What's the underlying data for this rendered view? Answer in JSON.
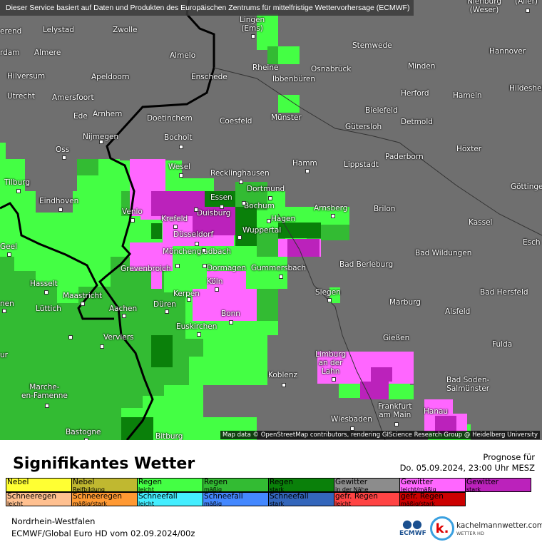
{
  "banner": "Dieser Service basiert auf Daten und Produkten des Europäischen Zentrums für mittelfristige Wettervorhersage (ECMWF)",
  "attribution": "Map data © OpenStreetMap contributors, rendering GIScience Research Group @ Heidelberg University",
  "colors": {
    "background": "#6f6f6f",
    "regen_leicht": "#44ff44",
    "regen_maessig": "#33bb33",
    "regen_stark": "#0a800a",
    "gewitter_leicht": "#ff66ff",
    "gewitter_stark": "#bb22bb",
    "border": "#000000"
  },
  "cities": [
    "Nienburg (Weser)",
    "(Aller)",
    "erend",
    "Lelystad",
    "Zwolle",
    "Lingen (Ems)",
    "rdam",
    "Almere",
    "Almelo",
    "Stemwede",
    "Hannover",
    "Rheine",
    "Osnabrück",
    "Minden",
    "Hilversum",
    "Apeldoorn",
    "Enschede",
    "Ibbenbüren",
    "Hildesheim",
    "Utrecht",
    "Amersfoort",
    "Herford",
    "Hameln",
    "Arnhem",
    "Ede",
    "Doetinchem",
    "Münster",
    "Bielefeld",
    "Detmold",
    "Coesfeld",
    "Gütersloh",
    "Nijmegen",
    "Bocholt",
    "Oss",
    "Höxter",
    "Paderborn",
    "Wesel",
    "Hamm",
    "Lippstadt",
    "Recklinghausen",
    "Tilburg",
    "Dortmund",
    "Göttingen",
    "Essen",
    "Eindhoven",
    "Venlo",
    "Duisburg",
    "Arnsberg",
    "Brilon",
    "Bochum",
    "Krefeld",
    "Hagen",
    "Kassel",
    "Wuppertal",
    "Düsseldorf",
    "Geel",
    "Esch",
    "Mönchengladbach",
    "Bad Wildungen",
    "Grevenbroich",
    "Dormagen",
    "Gummersbach",
    "Bad Berleburg",
    "Hasselt",
    "Köln",
    "Maastricht",
    "Kerpen",
    "Siegen",
    "Bad Hersfeld",
    "nen",
    "Marburg",
    "Aachen",
    "Düren",
    "Alsfeld",
    "Lüttich",
    "Bonn",
    "Euskirchen",
    "Verviers",
    "Gießen",
    "Fulda",
    "ur",
    "Limburg an der Lahn",
    "Koblenz",
    "Bad Soden-Salmünster",
    "Marche-en-Famenne",
    "Frankfurt am Main",
    "Hanau",
    "Wiesbaden",
    "Bastogne",
    "Bitburg"
  ],
  "legend": {
    "title": "Signifikantes Wetter",
    "forecast_label": "Prognose für",
    "forecast_time": "Do. 05.09.2024, 23:00 Uhr MESZ",
    "rows": [
      [
        {
          "a": "Nebel",
          "b": "",
          "color": "#ffff33",
          "text": "#000"
        },
        {
          "a": "Nebel",
          "b": "Reifbildung",
          "color": "#c0b830",
          "text": "#000"
        },
        {
          "a": "Regen",
          "b": "leicht",
          "color": "#44ff44",
          "text": "#000"
        },
        {
          "a": "Regen",
          "b": "mäßig",
          "color": "#33bb33",
          "text": "#000"
        },
        {
          "a": "Regen",
          "b": "stark",
          "color": "#0a800a",
          "text": "#000"
        },
        {
          "a": "Gewitter",
          "b": "in der Nähe",
          "color": "#8c8c8c",
          "text": "#000"
        },
        {
          "a": "Gewitter",
          "b": "leicht/mäßig",
          "color": "#ff66ff",
          "text": "#000"
        },
        {
          "a": "Gewitter",
          "b": "stark",
          "color": "#bb22bb",
          "text": "#000"
        }
      ],
      [
        {
          "a": "Schneeregen",
          "b": "leicht",
          "color": "#ffc090",
          "text": "#000"
        },
        {
          "a": "Schneeregen",
          "b": "mäßig/stark",
          "color": "#ff9933",
          "text": "#000"
        },
        {
          "a": "Schneefall",
          "b": "leicht",
          "color": "#44eeff",
          "text": "#000"
        },
        {
          "a": "Schneefall",
          "b": "mäßig",
          "color": "#4488ff",
          "text": "#000"
        },
        {
          "a": "Schneefall",
          "b": "stark",
          "color": "#3366bb",
          "text": "#000"
        },
        {
          "a": "gefr. Regen",
          "b": "leicht",
          "color": "#ff4444",
          "text": "#000"
        },
        {
          "a": "gefr. Regen",
          "b": "mäßig/stark",
          "color": "#cc0000",
          "text": "#000"
        }
      ]
    ]
  },
  "footer": {
    "region": "Nordrhein-Westfalen",
    "model": "ECMWF/Global Euro HD vom  02.09.2024/00z",
    "ecmwf_logo": "ECMWF",
    "brand": "kachelmannwetter.com",
    "brand_sub": "WETTER HD",
    "brand_logo": "k."
  }
}
